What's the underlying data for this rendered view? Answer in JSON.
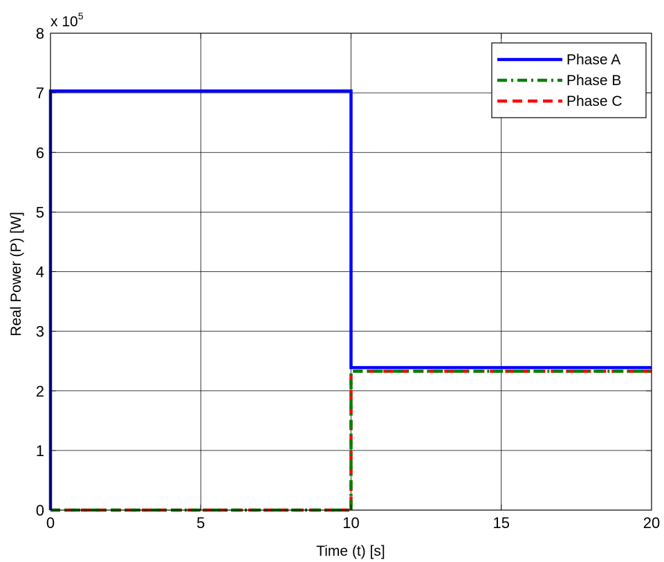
{
  "chart_data": {
    "type": "line",
    "title": "",
    "xlabel": "Time (t) [s]",
    "ylabel": "Real Power (P) [W]",
    "y_multiplier_base": "x 10",
    "y_multiplier_exponent": "5",
    "xlim": [
      0,
      20
    ],
    "ylim": [
      0,
      8
    ],
    "x_ticks": [
      0,
      5,
      10,
      15,
      20
    ],
    "y_ticks": [
      0,
      1,
      2,
      3,
      4,
      5,
      6,
      7,
      8
    ],
    "grid": true,
    "legend_position": "top-right",
    "series": [
      {
        "name": "Phase A",
        "color": "#0000ff",
        "style": "solid",
        "x": [
          0,
          0,
          10,
          10,
          20
        ],
        "y": [
          0,
          7.03,
          7.03,
          2.39,
          2.39
        ]
      },
      {
        "name": "Phase B",
        "color": "#008000",
        "style": "dashdot",
        "x": [
          0,
          10,
          10,
          20
        ],
        "y": [
          0,
          0,
          2.33,
          2.33
        ]
      },
      {
        "name": "Phase C",
        "color": "#ff0000",
        "style": "dashed",
        "x": [
          0,
          10,
          10,
          20
        ],
        "y": [
          0,
          0,
          2.33,
          2.33
        ]
      }
    ]
  }
}
